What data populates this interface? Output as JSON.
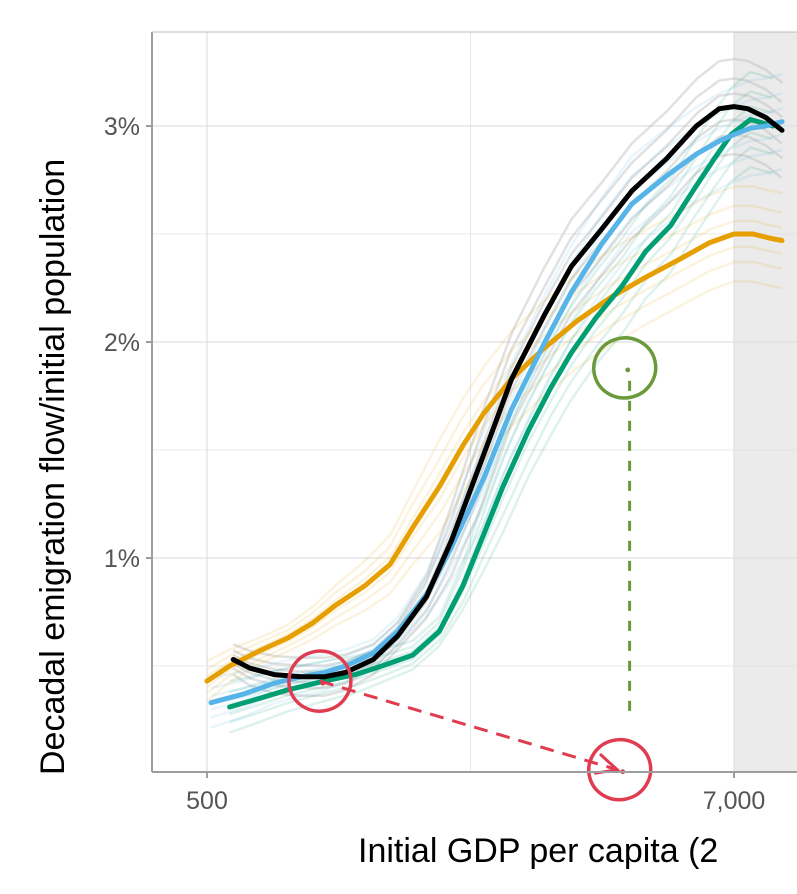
{
  "chart_data": {
    "type": "line",
    "xlabel": "Initial GDP per capita (2",
    "ylabel": "Decadal emigration flow/initial population",
    "x_scale": "log",
    "xlim": [
      360,
      9000
    ],
    "ylim": [
      0.0004,
      0.0034
    ],
    "x_ticks": [
      {
        "value": 500,
        "label": "500"
      },
      {
        "value": 7000,
        "label": "7,000"
      }
    ],
    "y_ticks": [
      {
        "value": 0.01,
        "label": "1%"
      },
      {
        "value": 0.02,
        "label": "2%"
      },
      {
        "value": 0.03,
        "label": "3%"
      }
    ],
    "grid": true,
    "shaded_region_from_x": 7000,
    "colors": {
      "black": "#000000",
      "blue": "#56b4e9",
      "orange": "#e69f00",
      "green": "#009e73",
      "ghost": "#bdbdbd",
      "annotation_red": "#e03c50",
      "annotation_green": "#6a9a3a",
      "shade": "#ebebeb",
      "grid": "#e0e0e0"
    },
    "series": [
      {
        "color": "black",
        "x": [
          570,
          620,
          700,
          800,
          900,
          1000,
          1150,
          1300,
          1500,
          1700,
          2000,
          2300,
          2700,
          3100,
          3600,
          4200,
          5000,
          5800,
          6500,
          7000,
          7500,
          8200,
          8900
        ],
        "y": [
          0.0053,
          0.0049,
          0.0046,
          0.0045,
          0.0045,
          0.0047,
          0.0053,
          0.0064,
          0.0082,
          0.0108,
          0.0148,
          0.0183,
          0.0212,
          0.0235,
          0.0252,
          0.027,
          0.0285,
          0.03,
          0.0308,
          0.0309,
          0.0308,
          0.0304,
          0.0298
        ]
      },
      {
        "color": "blue",
        "x": [
          510,
          600,
          700,
          800,
          900,
          1000,
          1150,
          1300,
          1500,
          1700,
          2000,
          2300,
          2700,
          3100,
          3600,
          4200,
          5000,
          5800,
          6500,
          7000,
          7600,
          8200,
          8900
        ],
        "y": [
          0.0033,
          0.0037,
          0.0042,
          0.0045,
          0.0047,
          0.005,
          0.0056,
          0.0066,
          0.0083,
          0.0105,
          0.0137,
          0.0169,
          0.0199,
          0.0223,
          0.0245,
          0.0264,
          0.0277,
          0.0287,
          0.0293,
          0.0296,
          0.0299,
          0.03,
          0.0302
        ]
      },
      {
        "color": "orange",
        "x": [
          500,
          560,
          650,
          750,
          850,
          950,
          1100,
          1250,
          1400,
          1600,
          1800,
          2000,
          2300,
          2700,
          3200,
          3800,
          4500,
          5300,
          6200,
          7000,
          7700,
          8400,
          8900
        ],
        "y": [
          0.0043,
          0.005,
          0.0057,
          0.0063,
          0.007,
          0.0078,
          0.0087,
          0.0097,
          0.0114,
          0.0133,
          0.0152,
          0.0167,
          0.0183,
          0.0197,
          0.021,
          0.0221,
          0.023,
          0.0238,
          0.0246,
          0.025,
          0.025,
          0.0248,
          0.0247
        ]
      },
      {
        "color": "green",
        "x": [
          560,
          650,
          750,
          900,
          1050,
          1200,
          1400,
          1600,
          1800,
          2000,
          2200,
          2500,
          2800,
          3100,
          3500,
          4000,
          4500,
          5100,
          5700,
          6300,
          6900,
          7600,
          8500
        ],
        "y": [
          0.0031,
          0.0035,
          0.0039,
          0.0043,
          0.0046,
          0.005,
          0.0055,
          0.0066,
          0.0087,
          0.0111,
          0.0133,
          0.0159,
          0.0179,
          0.0195,
          0.0211,
          0.0226,
          0.0242,
          0.0254,
          0.027,
          0.0284,
          0.0296,
          0.0303,
          0.03
        ]
      }
    ],
    "annotations": [
      {
        "type": "circle",
        "color": "annotation_red",
        "x": 880,
        "y": 0.0043
      },
      {
        "type": "circle",
        "color": "annotation_red",
        "x": 3950,
        "y": 0.0002
      },
      {
        "type": "circle",
        "color": "annotation_green",
        "x": 4050,
        "y": 0.0188
      },
      {
        "type": "dashed-arrow",
        "color": "annotation_red",
        "from": [
          880,
          0.0043
        ],
        "to": [
          3900,
          0.0002
        ]
      },
      {
        "type": "dashed-line",
        "color": "annotation_green",
        "from": [
          4150,
          0.0182
        ],
        "to": [
          4150,
          0.0025
        ]
      }
    ]
  }
}
